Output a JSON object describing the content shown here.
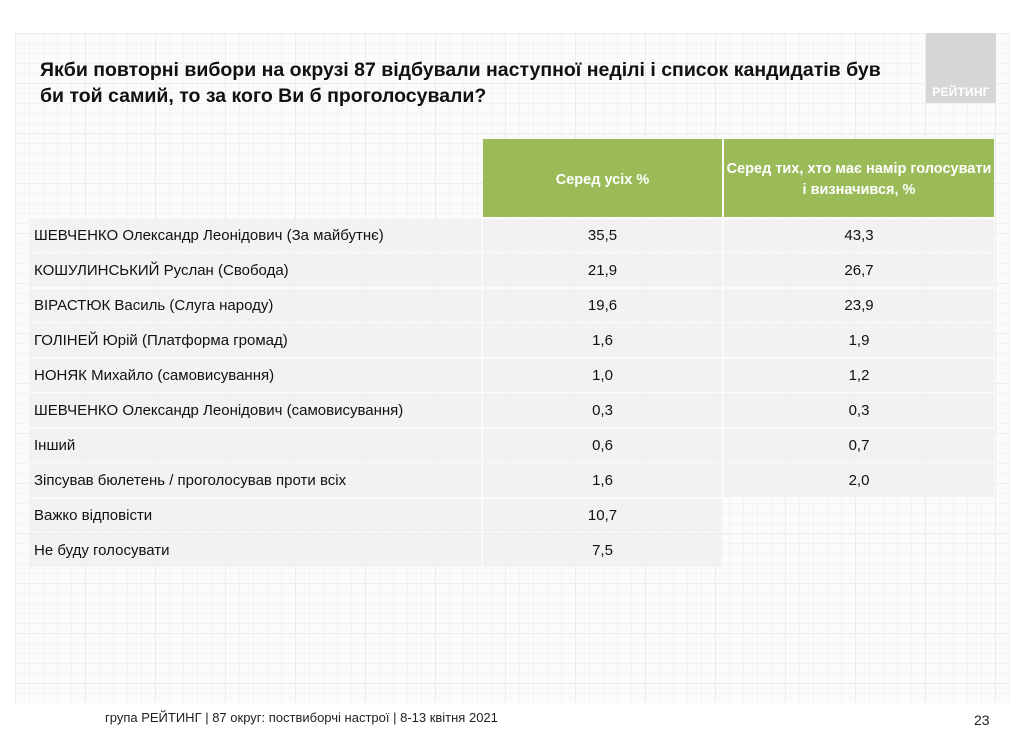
{
  "logo": {
    "text": "РЕЙТИНГ"
  },
  "title": "Якби повторні вибори на окрузі 87 відбували наступної неділі і список кандидатів був би той самий, то за кого Ви б проголосували?",
  "table": {
    "headers": [
      "Серед усіх %",
      "Серед тих, хто має намір голосувати і визначився, %"
    ],
    "rows": [
      {
        "label": "ШЕВЧЕНКО Олександр Леонідович (За майбутнє)",
        "all": "35,5",
        "decided": "43,3"
      },
      {
        "label": "КОШУЛИНСЬКИЙ Руслан (Свобода)",
        "all": "21,9",
        "decided": "26,7"
      },
      {
        "label": "ВІРАСТЮК Василь (Слуга народу)",
        "all": "19,6",
        "decided": "23,9"
      },
      {
        "label": "ГОЛІНЕЙ Юрій (Платформа громад)",
        "all": "1,6",
        "decided": "1,9"
      },
      {
        "label": "НОНЯК Михайло (самовисування)",
        "all": "1,0",
        "decided": "1,2"
      },
      {
        "label": "ШЕВЧЕНКО Олександр Леонідович (самовисування)",
        "all": "0,3",
        "decided": "0,3"
      },
      {
        "label": "Інший",
        "all": "0,6",
        "decided": "0,7"
      },
      {
        "label": "Зіпсував бюлетень / проголосував проти всіх",
        "all": "1,6",
        "decided": "2,0"
      },
      {
        "label": "Важко відповісти",
        "all": "10,7",
        "decided": null
      },
      {
        "label": "Не буду голосувати",
        "all": "7,5",
        "decided": null
      }
    ]
  },
  "footer": {
    "text": "група РЕЙТИНГ  | 87 округ: поствиборчі настрої | 8-13 квітня 2021",
    "page_number": "23"
  },
  "colors": {
    "header_bg": "#9bbb59",
    "row_bg": "#f2f2f2",
    "logo_bg": "#d6d6d6"
  }
}
